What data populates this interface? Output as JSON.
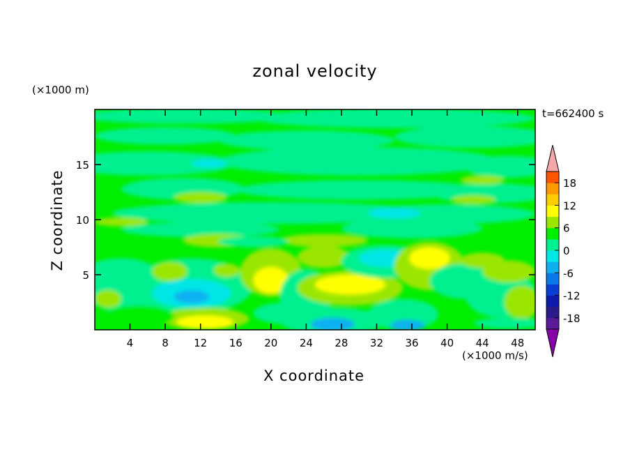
{
  "chart_data": {
    "type": "heatmap",
    "title": "zonal velocity",
    "xlabel": "X coordinate",
    "ylabel": "Z coordinate",
    "x_units": "(×1000 m/s)",
    "z_units": "(×1000 m)",
    "time_label": "t=662400 s",
    "xlim": [
      0,
      50
    ],
    "ylim": [
      0,
      20
    ],
    "x_ticks": [
      "4",
      "8",
      "12",
      "16",
      "20",
      "24",
      "28",
      "32",
      "36",
      "40",
      "44",
      "48"
    ],
    "y_ticks": [
      "5",
      "10",
      "15"
    ],
    "colorbar": {
      "range": [
        -21,
        21
      ],
      "step": 3,
      "tick_labels": [
        "18",
        "12",
        "6",
        "0",
        "-6",
        "-12",
        "-18"
      ],
      "colors": {
        "lt_minus21": "#8800aa",
        "-21": "#5a1a9a",
        "-18": "#2a1a8a",
        "-15": "#0d1aa8",
        "-12": "#0a3ed0",
        "-9": "#0a7ae8",
        "-6": "#10b0f0",
        "-3": "#00e6e6",
        "0": "#00f090",
        "3": "#00ee00",
        "6": "#9be600",
        "9": "#ffff00",
        "12": "#ffcc00",
        "15": "#ff9900",
        "18": "#ff5500",
        "21": "#ee0000",
        "gt_21": "#f4a8a8"
      }
    },
    "field_description_features": [
      {
        "x": 12.5,
        "z": 0.6,
        "value": 9
      },
      {
        "x": 29,
        "z": 4,
        "value": 8
      },
      {
        "x": 38,
        "z": 6.3,
        "value": 7
      },
      {
        "x": 20,
        "z": 4.5,
        "value": 6
      },
      {
        "x": 27,
        "z": 0.6,
        "value": -6
      },
      {
        "x": 10,
        "z": 3,
        "value": -5
      },
      {
        "x": 34,
        "z": 7,
        "value": -3
      }
    ]
  }
}
